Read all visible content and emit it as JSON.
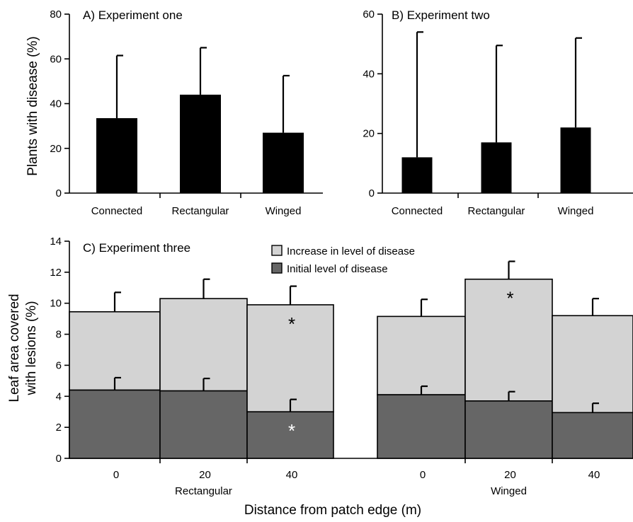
{
  "chart_data": [
    {
      "type": "bar",
      "title": "A) Experiment one",
      "ylabel": "Plants with disease (%)",
      "xlabel": "",
      "ylim": [
        0,
        80
      ],
      "yticks": [
        0,
        20,
        40,
        60,
        80
      ],
      "categories": [
        "Connected",
        "Rectangular",
        "Winged"
      ],
      "values": [
        33.5,
        44,
        27
      ],
      "error_upper": [
        61.5,
        65,
        52.5
      ],
      "colors": {
        "bar": "#000000"
      }
    },
    {
      "type": "bar",
      "title": "B) Experiment two",
      "ylabel": "",
      "xlabel": "",
      "ylim": [
        0,
        60
      ],
      "yticks": [
        0,
        20,
        40,
        60
      ],
      "categories": [
        "Connected",
        "Rectangular",
        "Winged"
      ],
      "values": [
        12,
        17,
        22
      ],
      "error_upper": [
        54,
        49.5,
        52
      ],
      "colors": {
        "bar": "#000000"
      }
    },
    {
      "type": "bar",
      "stacked": true,
      "title": "C) Experiment three",
      "ylabel": "Leaf area covered with lesions (%)",
      "ylabel_lines": [
        "Leaf area covered",
        "with lesions (%)"
      ],
      "xlabel": "Distance from patch edge (m)",
      "ylim": [
        0,
        14
      ],
      "yticks": [
        0,
        2,
        4,
        6,
        8,
        10,
        12,
        14
      ],
      "categories": [
        "0",
        "20",
        "40",
        "0",
        "20",
        "40"
      ],
      "groups": [
        {
          "label": "Rectangular",
          "indices": [
            0,
            1,
            2
          ]
        },
        {
          "label": "Winged",
          "indices": [
            3,
            4,
            5
          ]
        }
      ],
      "series": [
        {
          "name": "Initial level of disease",
          "color": "#666666",
          "values": [
            4.4,
            4.35,
            3.0,
            4.1,
            3.7,
            2.95
          ],
          "error_upper": [
            5.2,
            5.15,
            3.8,
            4.65,
            4.3,
            3.55
          ],
          "significant": [
            false,
            false,
            true,
            false,
            false,
            false
          ]
        },
        {
          "name": "Increase in level of disease",
          "color": "#d3d3d3",
          "values": [
            5.05,
            5.95,
            6.9,
            5.05,
            7.85,
            6.25
          ],
          "totals": [
            9.45,
            10.3,
            9.9,
            9.15,
            11.55,
            9.2
          ],
          "error_upper": [
            10.7,
            11.55,
            11.1,
            10.25,
            12.7,
            10.3
          ],
          "significant": [
            false,
            false,
            true,
            false,
            true,
            false
          ]
        }
      ],
      "significance_marker": "*",
      "legend_position": "top-center"
    }
  ]
}
